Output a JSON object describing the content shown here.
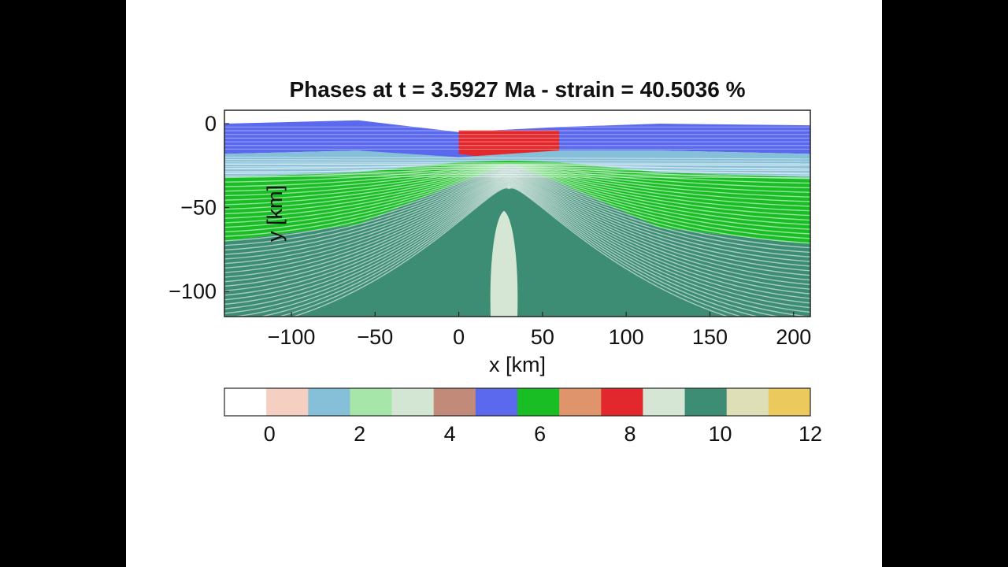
{
  "chart_data": {
    "type": "heatmap",
    "title": "Phases at t = 3.5927 Ma  - strain = 40.5036 %",
    "xlabel": "x [km]",
    "ylabel": "y [km]",
    "xlim": [
      -140,
      210
    ],
    "ylim": [
      -115,
      8
    ],
    "x_ticks": [
      -100,
      -50,
      0,
      50,
      100,
      150,
      200
    ],
    "y_ticks": [
      0,
      -50,
      -100
    ],
    "legend_position": "none",
    "grid": false,
    "layers": [
      {
        "phase": 5,
        "top": [
          [
            -140,
            0
          ],
          [
            -60,
            2
          ],
          [
            0,
            -5
          ],
          [
            60,
            -2
          ],
          [
            120,
            0
          ],
          [
            210,
            -1
          ]
        ],
        "bottom": [
          [
            -140,
            -18
          ],
          [
            -60,
            -16
          ],
          [
            0,
            -22
          ],
          [
            60,
            -16
          ],
          [
            120,
            -16
          ],
          [
            210,
            -18
          ]
        ]
      },
      {
        "phase": 8,
        "top": [
          [
            0,
            -4
          ],
          [
            30,
            -4
          ],
          [
            60,
            -4
          ]
        ],
        "bottom": [
          [
            0,
            -18
          ],
          [
            30,
            -22
          ],
          [
            60,
            -18
          ]
        ]
      },
      {
        "phase": 1,
        "top": [
          [
            -140,
            -18
          ],
          [
            -60,
            -16
          ],
          [
            0,
            -20
          ],
          [
            60,
            -16
          ],
          [
            120,
            -16
          ],
          [
            210,
            -18
          ]
        ],
        "bottom": [
          [
            -140,
            -32
          ],
          [
            -60,
            -29
          ],
          [
            0,
            -24
          ],
          [
            30,
            -22
          ],
          [
            60,
            -24
          ],
          [
            120,
            -29
          ],
          [
            210,
            -32
          ]
        ]
      },
      {
        "phase": 6,
        "top": [
          [
            -140,
            -32
          ],
          [
            -60,
            -29
          ],
          [
            0,
            -23
          ],
          [
            30,
            -22
          ],
          [
            60,
            -23
          ],
          [
            120,
            -29
          ],
          [
            210,
            -32
          ]
        ],
        "bottom": [
          [
            -140,
            -70
          ],
          [
            -60,
            -60
          ],
          [
            0,
            -35
          ],
          [
            30,
            -24
          ],
          [
            60,
            -35
          ],
          [
            120,
            -62
          ],
          [
            210,
            -72
          ]
        ]
      },
      {
        "phase": 10,
        "top": [
          [
            -140,
            -70
          ],
          [
            -60,
            -60
          ],
          [
            0,
            -35
          ],
          [
            30,
            -24
          ],
          [
            60,
            -35
          ],
          [
            120,
            -62
          ],
          [
            210,
            -72
          ]
        ],
        "bottom": [
          [
            -140,
            -115
          ],
          [
            210,
            -115
          ]
        ]
      }
    ],
    "colorbar": {
      "range": [
        -1,
        12
      ],
      "ticks": [
        0,
        2,
        4,
        6,
        8,
        10,
        12
      ],
      "colors": [
        "#ffffff",
        "#f4cfc2",
        "#86bfd8",
        "#a6e6a8",
        "#d3e6d3",
        "#c28a78",
        "#5b69ef",
        "#18be24",
        "#df946c",
        "#e3282d",
        "#d5e6d5",
        "#3d8d74",
        "#dedfb6",
        "#ecc95c"
      ]
    }
  }
}
